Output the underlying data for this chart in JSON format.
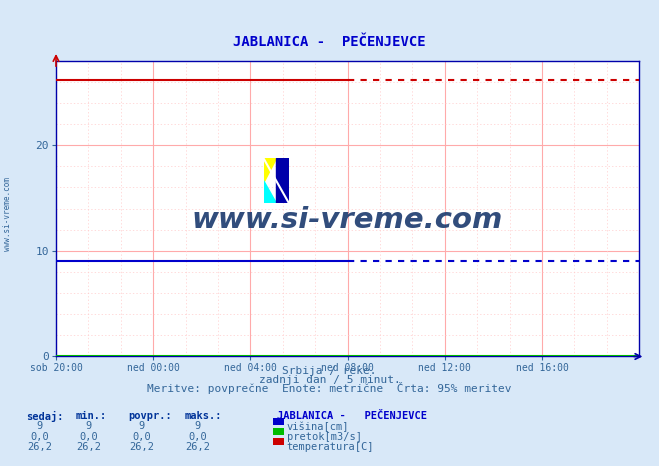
{
  "title": "JABLANICA -  PEČENJEVCE",
  "bg_color": "#d8e8f8",
  "plot_bg_color": "#ffffff",
  "grid_color_major": "#ffaaaa",
  "grid_color_minor": "#ffcccc",
  "xlim_min": 0,
  "xlim_max": 288,
  "ylim_min": 0,
  "ylim_max": 28,
  "yticks": [
    0,
    10,
    20
  ],
  "xtick_labels": [
    "sob 20:00",
    "ned 00:00",
    "ned 04:00",
    "ned 08:00",
    "ned 12:00",
    "ned 16:00"
  ],
  "xtick_positions": [
    0,
    48,
    96,
    144,
    192,
    240
  ],
  "visina_value": 9,
  "pretok_value": 0.0,
  "temp_value": 26.2,
  "visina_color": "#0000cc",
  "pretok_color": "#00bb00",
  "temp_color": "#cc0000",
  "data_solid_end": 144,
  "footer_line1": "Srbija / reke.",
  "footer_line2": "zadnji dan / 5 minut.",
  "footer_line3": "Meritve: povprečne  Enote: metrične  Črta: 95% meritev",
  "table_header": [
    "sedaj:",
    "min.:",
    "povpr.:",
    "maks.:"
  ],
  "station_label": "JABLANICA -   PEČENJEVCE",
  "row1": [
    "9",
    "9",
    "9",
    "9"
  ],
  "row2": [
    "0,0",
    "0,0",
    "0,0",
    "0,0"
  ],
  "row3": [
    "26,2",
    "26,2",
    "26,2",
    "26,2"
  ],
  "legend_labels": [
    "višina[cm]",
    "pretok[m3/s]",
    "temperatura[C]"
  ],
  "legend_colors": [
    "#0000cc",
    "#00bb00",
    "#cc0000"
  ],
  "watermark_text": "www.si-vreme.com",
  "watermark_color": "#1a3a6e",
  "left_text": "www.si-vreme.com"
}
